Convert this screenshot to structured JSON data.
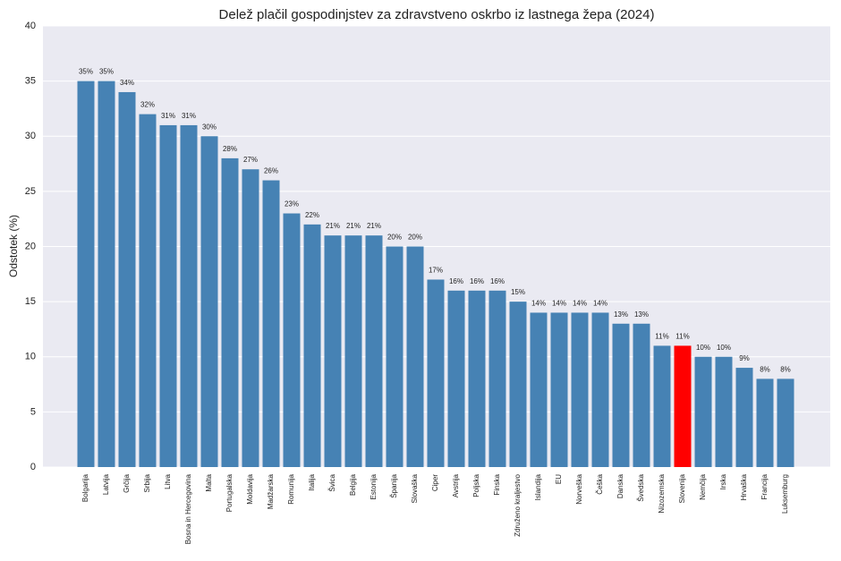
{
  "chart_data": {
    "type": "bar",
    "title": "Delež plačil gospodinjstev za zdravstveno oskrbo iz lastnega žepa (2024)",
    "y_label": "Odstotek (%)",
    "categories": [
      "Bolgarija",
      "Latvija",
      "Grčija",
      "Srbija",
      "Litva",
      "Bosna in Hercegovina",
      "Malta",
      "Portugalska",
      "Moldavija",
      "Madžarska",
      "Romunija",
      "Italija",
      "Švica",
      "Belgija",
      "Estonija",
      "Španija",
      "Slovaška",
      "Ciper",
      "Avstrija",
      "Poljska",
      "Finska",
      "Združeno kraljestvo",
      "Islandija",
      "EU",
      "Norveška",
      "Češka",
      "Danska",
      "Švedska",
      "Nizozemska",
      "Slovenija",
      "Nemčija",
      "Irska",
      "Hrvaška",
      "Francija",
      "Luksemburg"
    ],
    "values": [
      35,
      35,
      34,
      32,
      31,
      31,
      30,
      28,
      27,
      26,
      23,
      22,
      21,
      21,
      21,
      20,
      20,
      17,
      16,
      16,
      16,
      15,
      14,
      14,
      14,
      14,
      13,
      13,
      11,
      11,
      10,
      10,
      9,
      8,
      8
    ],
    "value_labels": [
      "35%",
      "35%",
      "34%",
      "32%",
      "31%",
      "31%",
      "30%",
      "28%",
      "27%",
      "26%",
      "23%",
      "22%",
      "21%",
      "21%",
      "21%",
      "20%",
      "20%",
      "17%",
      "16%",
      "16%",
      "16%",
      "15%",
      "14%",
      "14%",
      "14%",
      "14%",
      "13%",
      "13%",
      "11%",
      "11%",
      "10%",
      "10%",
      "9%",
      "8%",
      "8%"
    ],
    "colors": [
      "#4682b4",
      "#4682b4",
      "#4682b4",
      "#4682b4",
      "#4682b4",
      "#4682b4",
      "#4682b4",
      "#4682b4",
      "#4682b4",
      "#4682b4",
      "#4682b4",
      "#4682b4",
      "#4682b4",
      "#4682b4",
      "#4682b4",
      "#4682b4",
      "#4682b4",
      "#4682b4",
      "#4682b4",
      "#4682b4",
      "#4682b4",
      "#4682b4",
      "#4682b4",
      "#4682b4",
      "#4682b4",
      "#4682b4",
      "#4682b4",
      "#4682b4",
      "#4682b4",
      "#ff0000",
      "#4682b4",
      "#4682b4",
      "#4682b4",
      "#4682b4",
      "#4682b4"
    ],
    "ylim": [
      0,
      40
    ],
    "yticks": [
      0,
      5,
      10,
      15,
      20,
      25,
      30,
      35,
      40
    ],
    "grid": true
  }
}
